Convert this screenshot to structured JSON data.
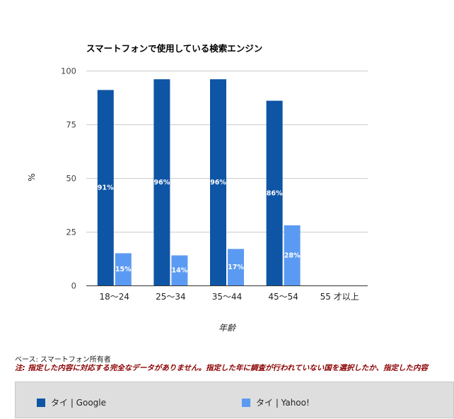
{
  "chart_data": {
    "type": "bar",
    "title": "スマートフォンで使用している検索エンジン",
    "xlabel": "年齢",
    "ylabel": "%",
    "ylim": [
      0,
      100
    ],
    "yticks": [
      0,
      25,
      50,
      75,
      100
    ],
    "categories": [
      "18〜24",
      "25〜34",
      "35〜44",
      "45〜54",
      "55 才以上"
    ],
    "series": [
      {
        "name": "タイ | Google",
        "color": "#0f55a5",
        "values": [
          91,
          96,
          96,
          86,
          null
        ],
        "labels": [
          "91%",
          "96%",
          "96%",
          "86%",
          ""
        ]
      },
      {
        "name": "タイ | Yahoo!",
        "color": "#5b9af2",
        "values": [
          15,
          14,
          17,
          28,
          null
        ],
        "labels": [
          "15%",
          "14%",
          "17%",
          "28%",
          ""
        ]
      }
    ],
    "grid": true,
    "legend_position": "bottom"
  },
  "notes": {
    "base": "ベース: スマートフォン所有者",
    "warning": "注: 指定した内容に対応する完全なデータがありません。指定した年に調査が行われていない国を選択したか、指定した内容"
  }
}
